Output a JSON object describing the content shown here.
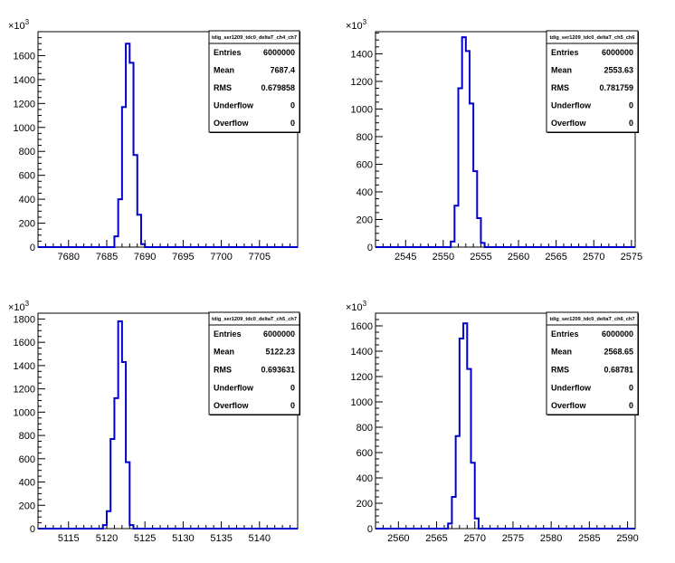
{
  "chart_data": [
    {
      "type": "histogram",
      "title": "",
      "xlabel": "",
      "ylabel": "",
      "y_multiplier_label": "×10³",
      "xlim": [
        7676.0,
        7710.0
      ],
      "ylim": [
        0,
        1800
      ],
      "xticks": [
        7680,
        7685,
        7690,
        7695,
        7700,
        7705
      ],
      "yticks": [
        0,
        200,
        400,
        600,
        800,
        1000,
        1200,
        1400,
        1600
      ],
      "bin_width": 0.5,
      "bin_edges": [
        7686.0,
        7686.5,
        7687.0,
        7687.5,
        7688.0,
        7688.5,
        7689.0,
        7689.5,
        7690.0
      ],
      "values": [
        90,
        400,
        1170,
        1700,
        1540,
        770,
        270,
        25
      ],
      "line_color": "#0000cc",
      "stats": {
        "name": "tdig_ser1209_tdc0_deltaT_ch4_ch7",
        "rows": [
          {
            "label": "Entries",
            "value": "6000000"
          },
          {
            "label": "Mean",
            "value": "7687.4"
          },
          {
            "label": "RMS",
            "value": "0.679858"
          },
          {
            "label": "Underflow",
            "value": "0"
          },
          {
            "label": "Overflow",
            "value": "0"
          }
        ]
      }
    },
    {
      "type": "histogram",
      "title": "",
      "xlabel": "",
      "ylabel": "",
      "y_multiplier_label": "×10³",
      "xlim": [
        2541.0,
        2575.5
      ],
      "ylim": [
        0,
        1560
      ],
      "xticks": [
        2545,
        2550,
        2555,
        2560,
        2565,
        2570,
        2575
      ],
      "yticks": [
        0,
        200,
        400,
        600,
        800,
        1000,
        1200,
        1400
      ],
      "bin_width": 0.5,
      "bin_edges": [
        2551.0,
        2551.5,
        2552.0,
        2552.5,
        2553.0,
        2553.5,
        2554.0,
        2554.5,
        2555.0,
        2555.5,
        2556.0
      ],
      "values": [
        40,
        300,
        1150,
        1520,
        1420,
        1040,
        550,
        210,
        30,
        0
      ],
      "line_color": "#0000cc",
      "stats": {
        "name": "tdig_ser1209_tdc0_deltaT_ch5_ch6",
        "rows": [
          {
            "label": "Entries",
            "value": "6000000"
          },
          {
            "label": "Mean",
            "value": "2553.63"
          },
          {
            "label": "RMS",
            "value": "0.781759"
          },
          {
            "label": "Underflow",
            "value": "0"
          },
          {
            "label": "Overflow",
            "value": "0"
          }
        ]
      }
    },
    {
      "type": "histogram",
      "title": "",
      "xlabel": "",
      "ylabel": "",
      "y_multiplier_label": "×10³",
      "xlim": [
        5111.0,
        5145.0
      ],
      "ylim": [
        0,
        1850
      ],
      "xticks": [
        5115,
        5120,
        5125,
        5130,
        5135,
        5140
      ],
      "yticks": [
        0,
        200,
        400,
        600,
        800,
        1000,
        1200,
        1400,
        1600,
        1800
      ],
      "bin_width": 0.5,
      "bin_edges": [
        5119.5,
        5120.0,
        5120.5,
        5121.0,
        5121.5,
        5122.0,
        5122.5,
        5123.0,
        5123.5,
        5124.0
      ],
      "values": [
        30,
        150,
        770,
        1120,
        1780,
        1430,
        570,
        30,
        0
      ],
      "line_color": "#0000cc",
      "stats": {
        "name": "tdig_ser1209_tdc0_deltaT_ch5_ch7",
        "rows": [
          {
            "label": "Entries",
            "value": "6000000"
          },
          {
            "label": "Mean",
            "value": "5122.23"
          },
          {
            "label": "RMS",
            "value": "0.693631"
          },
          {
            "label": "Underflow",
            "value": "0"
          },
          {
            "label": "Overflow",
            "value": "0"
          }
        ]
      }
    },
    {
      "type": "histogram",
      "title": "",
      "xlabel": "",
      "ylabel": "",
      "y_multiplier_label": "×10³",
      "xlim": [
        2557.0,
        2591.0
      ],
      "ylim": [
        0,
        1700
      ],
      "xticks": [
        2560,
        2565,
        2570,
        2575,
        2580,
        2585,
        2590
      ],
      "yticks": [
        0,
        200,
        400,
        600,
        800,
        1000,
        1200,
        1400,
        1600
      ],
      "bin_width": 0.5,
      "bin_edges": [
        2566.5,
        2567.0,
        2567.5,
        2568.0,
        2568.5,
        2569.0,
        2569.5,
        2570.0,
        2570.5,
        2571.0
      ],
      "values": [
        40,
        250,
        730,
        1500,
        1620,
        1260,
        520,
        80,
        0
      ],
      "line_color": "#0000cc",
      "stats": {
        "name": "tdig_ser1209_tdc0_deltaT_ch6_ch7",
        "rows": [
          {
            "label": "Entries",
            "value": "6000000"
          },
          {
            "label": "Mean",
            "value": "2568.65"
          },
          {
            "label": "RMS",
            "value": "0.68781"
          },
          {
            "label": "Underflow",
            "value": "0"
          },
          {
            "label": "Overflow",
            "value": "0"
          }
        ]
      }
    }
  ]
}
